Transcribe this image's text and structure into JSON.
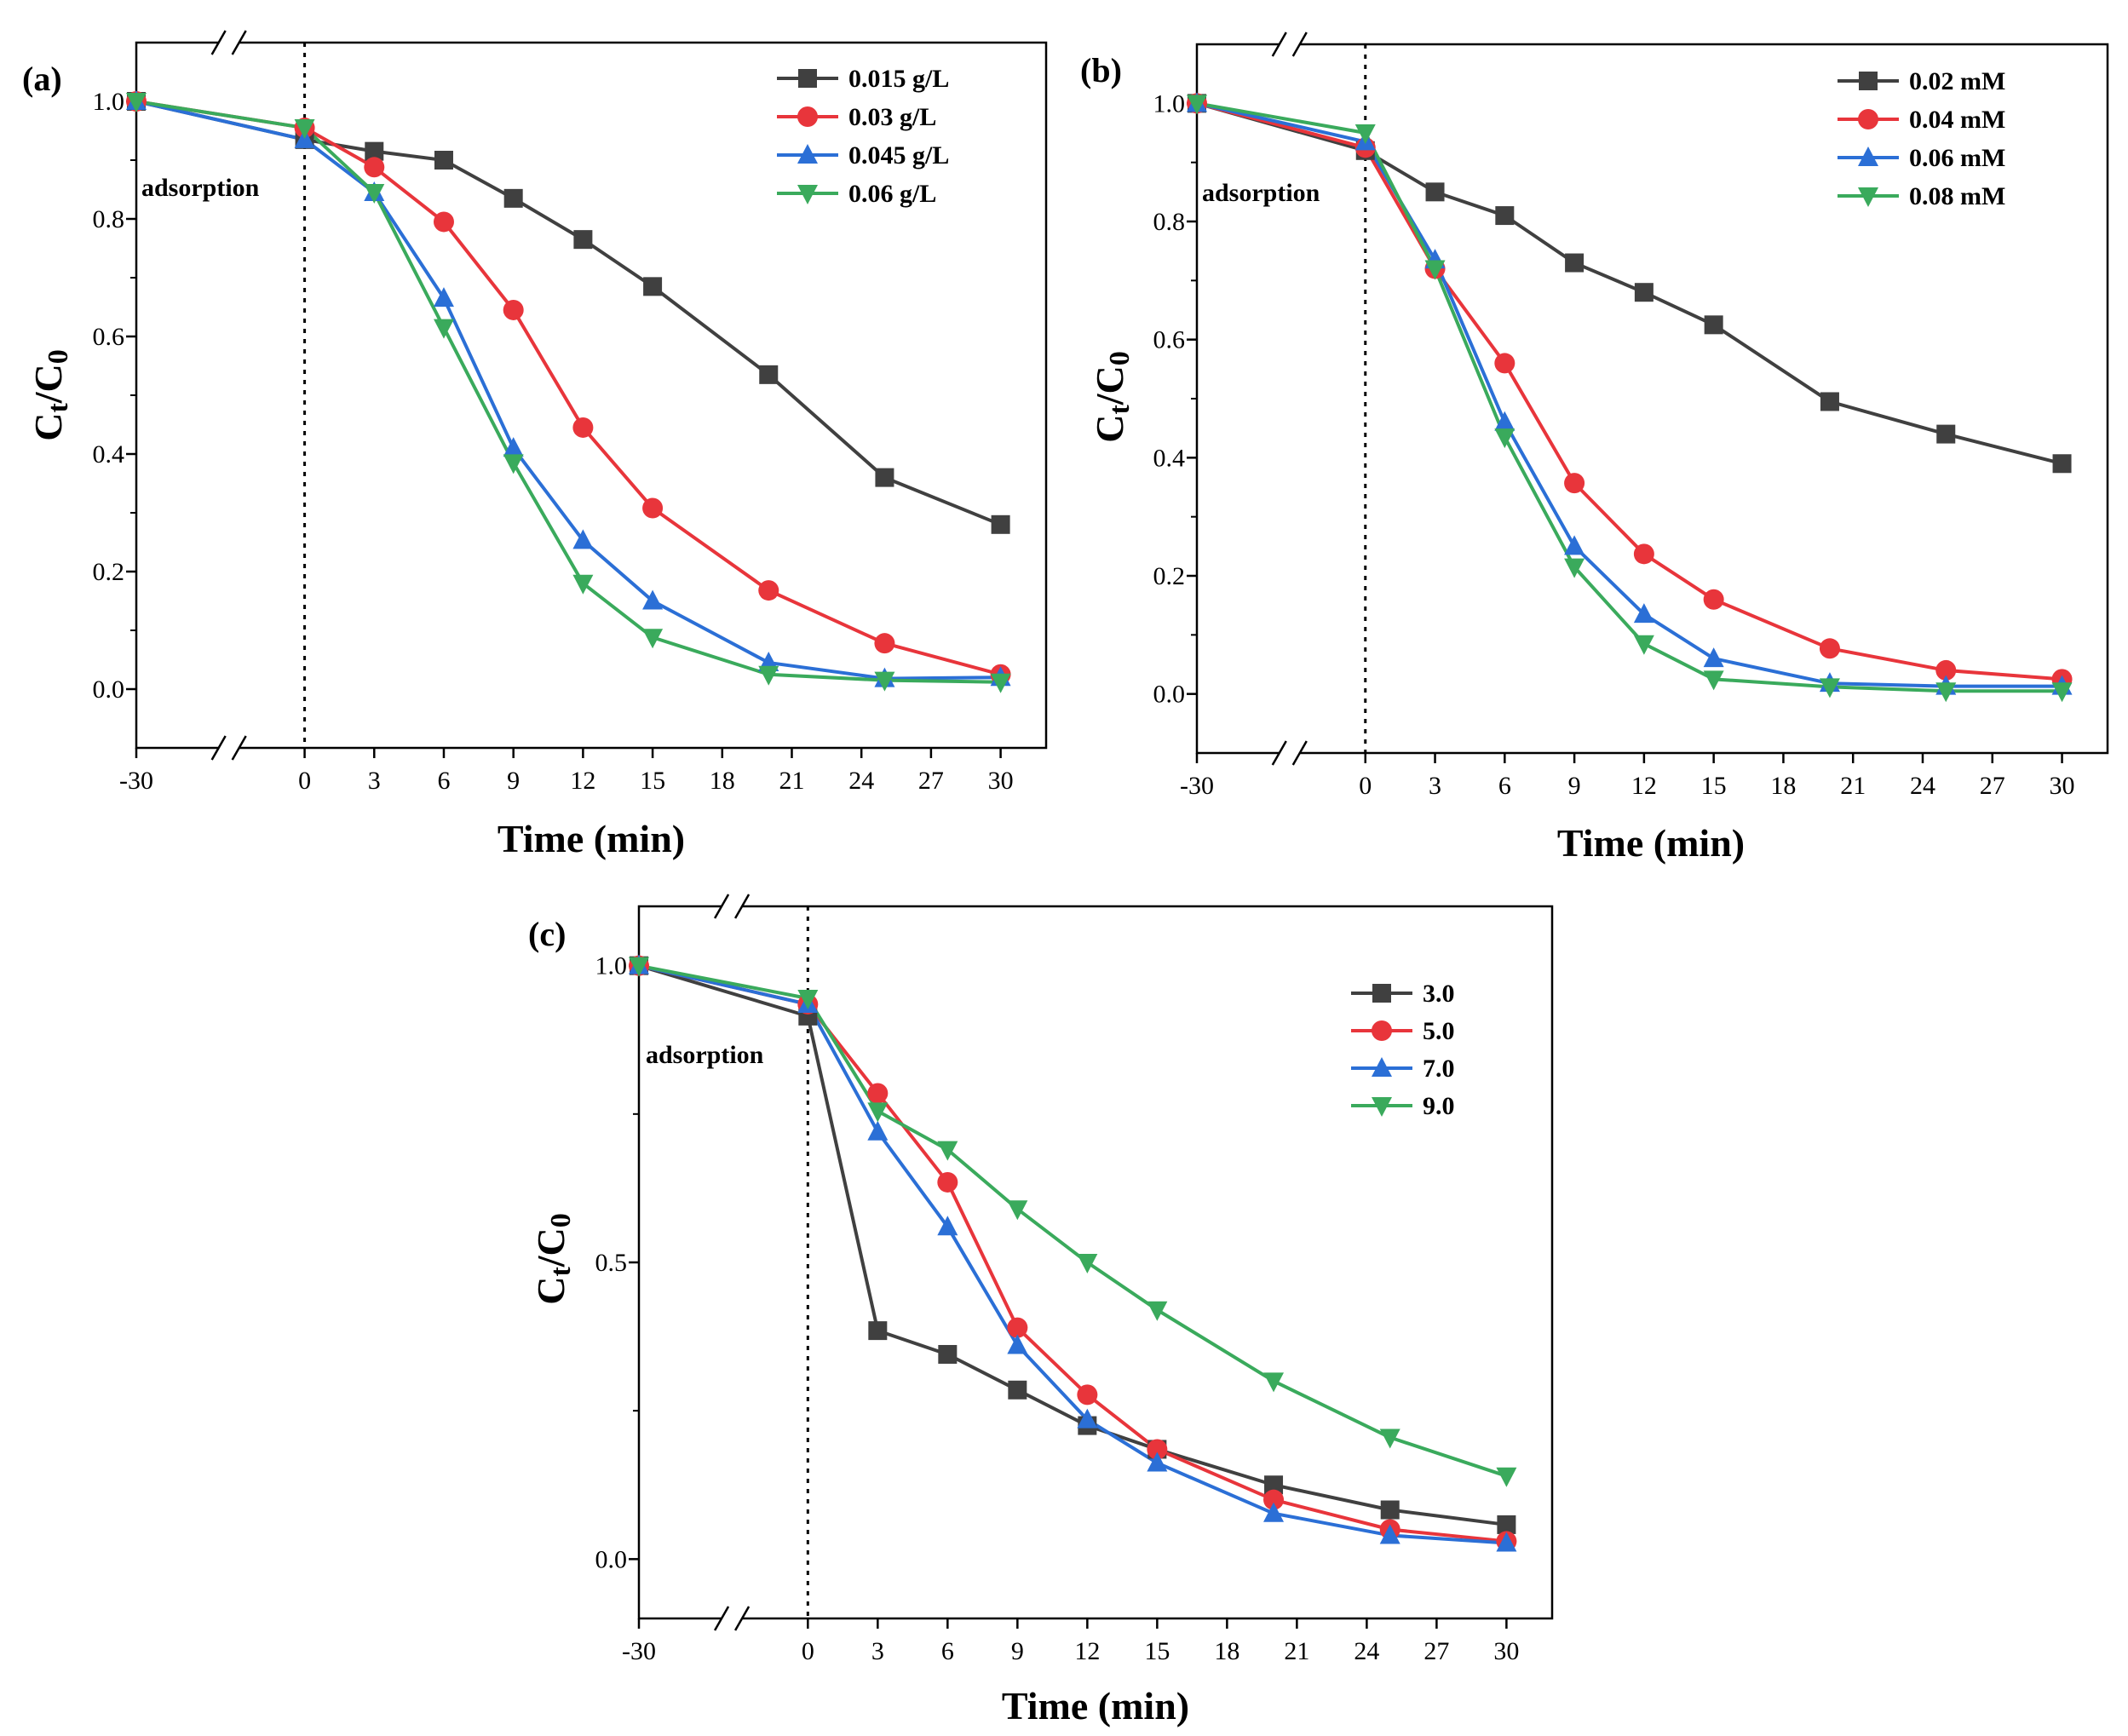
{
  "chart_data": [
    {
      "type": "line",
      "panel": "(a)",
      "xlabel": "Time (min)",
      "ylabel_main": "C",
      "ylabel_sub1": "t",
      "ylabel_slash": "/C",
      "ylabel_sub2": "0",
      "annotation": "adsorption",
      "xlim": [
        -30,
        30
      ],
      "ylim": [
        -0.1,
        1.1
      ],
      "x_ticks": [
        -30,
        0,
        3,
        6,
        9,
        12,
        15,
        18,
        21,
        24,
        27,
        30
      ],
      "x_tick_labels": [
        "-30",
        "0",
        "3",
        "6",
        "9",
        "12",
        "15",
        "18",
        "21",
        "24",
        "27",
        "30"
      ],
      "y_ticks": [
        0.0,
        0.2,
        0.4,
        0.6,
        0.8,
        1.0
      ],
      "y_tick_labels": [
        "0.0",
        "0.2",
        "0.4",
        "0.6",
        "0.8",
        "1.0"
      ],
      "x": [
        -30,
        0,
        3,
        6,
        9,
        12,
        15,
        20,
        25,
        30
      ],
      "series": [
        {
          "name": "0.015 g/L",
          "color": "#404040",
          "marker": "square",
          "values": [
            1.0,
            0.935,
            0.915,
            0.9,
            0.835,
            0.765,
            0.685,
            0.535,
            0.36,
            0.28
          ]
        },
        {
          "name": "0.03 g/L",
          "color": "#e8353b",
          "marker": "circle",
          "values": [
            1.0,
            0.955,
            0.888,
            0.795,
            0.645,
            0.445,
            0.308,
            0.168,
            0.078,
            0.025
          ]
        },
        {
          "name": "0.045 g/L",
          "color": "#2b6fd6",
          "marker": "triangle-up",
          "values": [
            1.0,
            0.935,
            0.845,
            0.665,
            0.41,
            0.253,
            0.15,
            0.045,
            0.018,
            0.02
          ]
        },
        {
          "name": "0.06 g/L",
          "color": "#3aaa5c",
          "marker": "triangle-down",
          "values": [
            1.0,
            0.955,
            0.845,
            0.615,
            0.385,
            0.18,
            0.088,
            0.025,
            0.015,
            0.012
          ]
        }
      ]
    },
    {
      "type": "line",
      "panel": "(b)",
      "xlabel": "Time (min)",
      "ylabel_main": "C",
      "ylabel_sub1": "t",
      "ylabel_slash": "/C",
      "ylabel_sub2": "0",
      "annotation": "adsorption",
      "xlim": [
        -30,
        30
      ],
      "ylim": [
        -0.1,
        1.1
      ],
      "x_ticks": [
        -30,
        0,
        3,
        6,
        9,
        12,
        15,
        18,
        21,
        24,
        27,
        30
      ],
      "x_tick_labels": [
        "-30",
        "0",
        "3",
        "6",
        "9",
        "12",
        "15",
        "18",
        "21",
        "24",
        "27",
        "30"
      ],
      "y_ticks": [
        0.0,
        0.2,
        0.4,
        0.6,
        0.8,
        1.0
      ],
      "y_tick_labels": [
        "0.0",
        "0.2",
        "0.4",
        "0.6",
        "0.8",
        "1.0"
      ],
      "x": [
        -30,
        0,
        3,
        6,
        9,
        12,
        15,
        20,
        25,
        30
      ],
      "series": [
        {
          "name": "0.02 mM",
          "color": "#404040",
          "marker": "square",
          "values": [
            1.0,
            0.92,
            0.85,
            0.81,
            0.73,
            0.68,
            0.625,
            0.495,
            0.44,
            0.39
          ]
        },
        {
          "name": "0.04 mM",
          "color": "#e8353b",
          "marker": "circle",
          "values": [
            1.0,
            0.925,
            0.72,
            0.56,
            0.357,
            0.237,
            0.16,
            0.077,
            0.04,
            0.025
          ]
        },
        {
          "name": "0.06 mM",
          "color": "#2b6fd6",
          "marker": "triangle-up",
          "values": [
            1.0,
            0.935,
            0.735,
            0.46,
            0.25,
            0.135,
            0.06,
            0.018,
            0.013,
            0.013
          ]
        },
        {
          "name": "0.08 mM",
          "color": "#3aaa5c",
          "marker": "triangle-down",
          "values": [
            1.0,
            0.95,
            0.72,
            0.435,
            0.215,
            0.085,
            0.025,
            0.012,
            0.005,
            0.005
          ]
        }
      ]
    },
    {
      "type": "line",
      "panel": "(c)",
      "xlabel": "Time (min)",
      "ylabel_main": "C",
      "ylabel_sub1": "t",
      "ylabel_slash": "/C",
      "ylabel_sub2": "0",
      "annotation": "adsorption",
      "xlim": [
        -30,
        30
      ],
      "ylim": [
        -0.1,
        1.1
      ],
      "x_ticks": [
        -30,
        0,
        3,
        6,
        9,
        12,
        15,
        18,
        21,
        24,
        27,
        30
      ],
      "x_tick_labels": [
        "-30",
        "0",
        "3",
        "6",
        "9",
        "12",
        "15",
        "18",
        "21",
        "24",
        "27",
        "30"
      ],
      "y_ticks": [
        0.0,
        0.5,
        1.0
      ],
      "y_tick_labels": [
        "0.0",
        "0.5",
        "1.0"
      ],
      "x": [
        -30,
        0,
        3,
        6,
        9,
        12,
        15,
        20,
        25,
        30
      ],
      "series": [
        {
          "name": "3.0",
          "color": "#404040",
          "marker": "square",
          "values": [
            1.0,
            0.915,
            0.385,
            0.345,
            0.285,
            0.225,
            0.185,
            0.125,
            0.083,
            0.058
          ]
        },
        {
          "name": "5.0",
          "color": "#e8353b",
          "marker": "circle",
          "values": [
            1.0,
            0.935,
            0.785,
            0.635,
            0.39,
            0.277,
            0.185,
            0.1,
            0.05,
            0.03
          ]
        },
        {
          "name": "7.0",
          "color": "#2b6fd6",
          "marker": "triangle-up",
          "values": [
            1.0,
            0.935,
            0.72,
            0.56,
            0.36,
            0.235,
            0.162,
            0.077,
            0.04,
            0.027
          ]
        },
        {
          "name": "9.0",
          "color": "#3aaa5c",
          "marker": "triangle-down",
          "values": [
            1.0,
            0.945,
            0.755,
            0.69,
            0.59,
            0.5,
            0.42,
            0.3,
            0.205,
            0.14
          ]
        }
      ]
    }
  ]
}
